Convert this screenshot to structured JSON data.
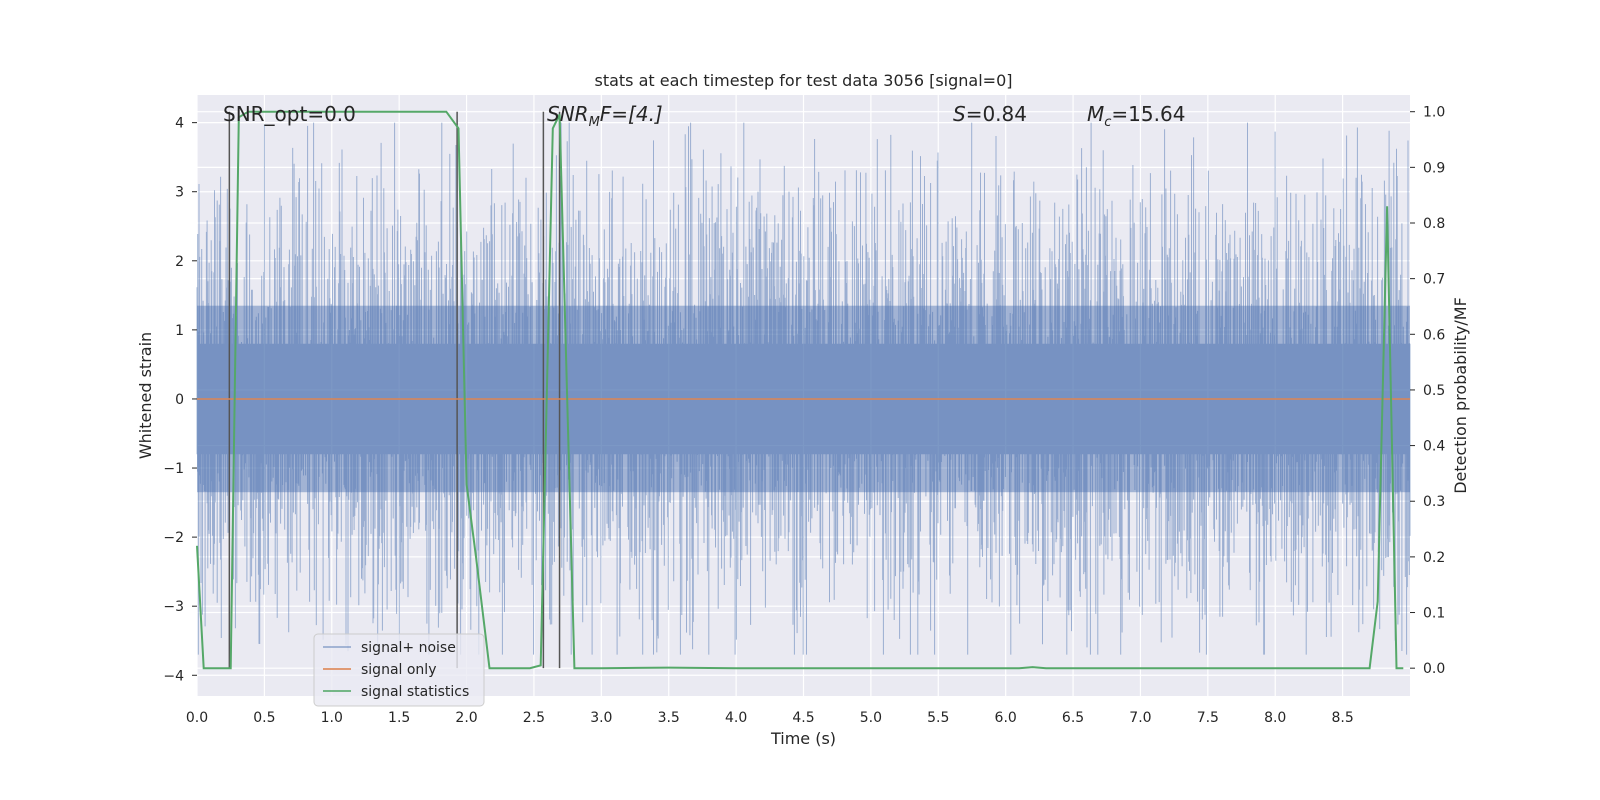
{
  "chart_data": {
    "type": "line",
    "title": "stats at each timestep for test data 3056 [signal=0]",
    "xlabel": "Time (s)",
    "ylabel": "Whitened strain",
    "y2label": "Detection probability/MF",
    "xlim": [
      0.0,
      9.0
    ],
    "ylim": [
      -4.3,
      4.4
    ],
    "y2lim": [
      -0.05,
      1.03
    ],
    "x_ticks": [
      "0.0",
      "0.5",
      "1.0",
      "1.5",
      "2.0",
      "2.5",
      "3.0",
      "3.5",
      "4.0",
      "4.5",
      "5.0",
      "5.5",
      "6.0",
      "6.5",
      "7.0",
      "7.5",
      "8.0",
      "8.5"
    ],
    "y_ticks": [
      "4",
      "3",
      "2",
      "1",
      "0",
      "−1",
      "−2",
      "−3",
      "−4"
    ],
    "y2_ticks": [
      "1.0",
      "0.9",
      "0.8",
      "0.7",
      "0.6",
      "0.5",
      "0.4",
      "0.3",
      "0.2",
      "0.1",
      "0.0"
    ],
    "annotations": {
      "snr_opt": "SNR_opt=0.0",
      "snr_mf_base": "SNR",
      "snr_mf_sub": "M",
      "snr_mf_rest": "F=[4.]",
      "s_base": "S",
      "s_rest": "=0.84",
      "mc_base": "M",
      "mc_sub": "c",
      "mc_rest": "=15.64"
    },
    "legend": {
      "position": "lower-left",
      "entries": [
        "signal+ noise",
        "signal only",
        "signal statistics"
      ]
    },
    "series": [
      {
        "name": "signal+ noise",
        "axis": "left",
        "color": "#4c72b0",
        "description": "whitened noise, roughly within -3.5..3.7",
        "noise_range": [
          -3.7,
          4.0
        ]
      },
      {
        "name": "signal only",
        "axis": "left",
        "color": "#dd8452",
        "x": [
          0.0,
          9.0
        ],
        "y": [
          0.0,
          0.0
        ]
      },
      {
        "name": "signal statistics",
        "axis": "right",
        "color": "#55a868",
        "x": [
          0.0,
          0.05,
          0.25,
          0.31,
          0.38,
          1.85,
          1.94,
          2.0,
          2.07,
          2.17,
          2.47,
          2.55,
          2.64,
          2.69,
          2.8,
          3.0,
          3.5,
          4.0,
          5.0,
          5.5,
          6.1,
          6.2,
          6.3,
          7.0,
          8.0,
          8.7,
          8.76,
          8.83,
          8.9,
          8.95
        ],
        "y": [
          0.22,
          0.0,
          0.0,
          0.99,
          1.0,
          1.0,
          0.97,
          0.33,
          0.2,
          0.0,
          0.0,
          0.005,
          0.97,
          0.995,
          0.0,
          0.0,
          0.001,
          0.0,
          0.0,
          0.0,
          0.0,
          0.002,
          0.0,
          0.0,
          0.0,
          0.0,
          0.12,
          0.83,
          0.0,
          0.0
        ]
      }
    ],
    "vlines": [
      0.24,
      1.93,
      2.57,
      2.69
    ],
    "vline_color": "#555555"
  }
}
